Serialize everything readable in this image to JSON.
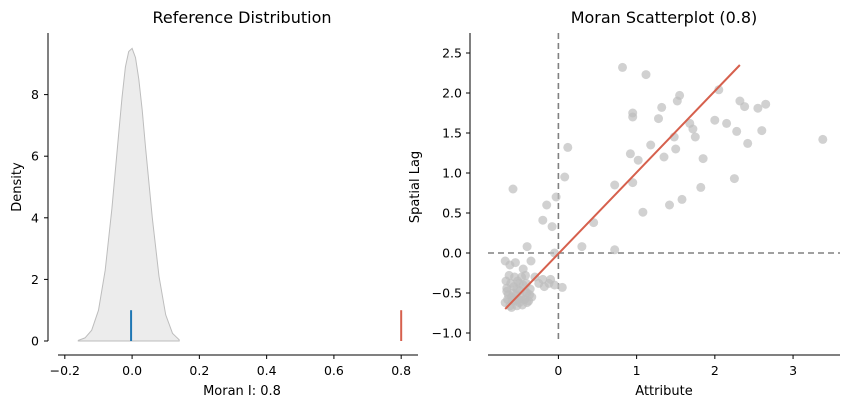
{
  "chart_data": [
    {
      "type": "area",
      "title": "Reference Distribution",
      "xlabel": "Moran I: 0.8",
      "ylabel": "Density",
      "xlim": [
        -0.25,
        0.85
      ],
      "ylim": [
        0,
        10
      ],
      "xticks": [
        -0.2,
        0.0,
        0.2,
        0.4,
        0.6,
        0.8
      ],
      "xtick_labels": [
        "−0.2",
        "0.0",
        "0.2",
        "0.4",
        "0.6",
        "0.8"
      ],
      "yticks": [
        0,
        2,
        4,
        6,
        8
      ],
      "ytick_labels": [
        "0",
        "2",
        "4",
        "6",
        "8"
      ],
      "density": {
        "x": [
          -0.16,
          -0.14,
          -0.12,
          -0.1,
          -0.08,
          -0.06,
          -0.04,
          -0.03,
          -0.02,
          -0.01,
          0.0,
          0.01,
          0.02,
          0.03,
          0.04,
          0.06,
          0.08,
          0.1,
          0.12,
          0.14
        ],
        "y": [
          0.02,
          0.1,
          0.35,
          1.0,
          2.3,
          4.3,
          6.7,
          7.9,
          8.9,
          9.4,
          9.5,
          9.2,
          8.5,
          7.5,
          6.3,
          4.0,
          2.1,
          0.85,
          0.25,
          0.04
        ],
        "fill": "#ececec",
        "stroke": "#bdbdbd"
      },
      "markers": [
        {
          "x": -0.003,
          "height": 1.0,
          "color": "#1f77b4"
        },
        {
          "x": 0.8,
          "height": 1.0,
          "color": "#d6604d"
        }
      ],
      "grid": false
    },
    {
      "type": "scatter",
      "title": "Moran Scatterplot (0.8)",
      "xlabel": "Attribute",
      "ylabel": "Spatial Lag",
      "xlim": [
        -0.9,
        3.6
      ],
      "ylim": [
        -1.1,
        2.75
      ],
      "xticks": [
        0,
        1,
        2,
        3
      ],
      "xtick_labels": [
        "0",
        "1",
        "2",
        "3"
      ],
      "yticks": [
        -1.0,
        -0.5,
        0.0,
        0.5,
        1.0,
        1.5,
        2.0,
        2.5
      ],
      "ytick_labels": [
        "−1.0",
        "−0.5",
        "0.0",
        "0.5",
        "1.0",
        "1.5",
        "2.0",
        "2.5"
      ],
      "point_color": "#bdbdbd",
      "points": [
        [
          -0.68,
          -0.62
        ],
        [
          -0.65,
          -0.58
        ],
        [
          -0.62,
          -0.66
        ],
        [
          -0.6,
          -0.55
        ],
        [
          -0.58,
          -0.5
        ],
        [
          -0.55,
          -0.6
        ],
        [
          -0.53,
          -0.45
        ],
        [
          -0.5,
          -0.62
        ],
        [
          -0.48,
          -0.55
        ],
        [
          -0.45,
          -0.4
        ],
        [
          -0.43,
          -0.58
        ],
        [
          -0.4,
          -0.5
        ],
        [
          -0.38,
          -0.6
        ],
        [
          -0.36,
          -0.45
        ],
        [
          -0.34,
          -0.55
        ],
        [
          -0.66,
          -0.48
        ],
        [
          -0.64,
          -0.52
        ],
        [
          -0.61,
          -0.38
        ],
        [
          -0.59,
          -0.6
        ],
        [
          -0.57,
          -0.42
        ],
        [
          -0.54,
          -0.52
        ],
        [
          -0.52,
          -0.35
        ],
        [
          -0.49,
          -0.47
        ],
        [
          -0.47,
          -0.3
        ],
        [
          -0.44,
          -0.58
        ],
        [
          -0.42,
          -0.48
        ],
        [
          -0.4,
          -0.62
        ],
        [
          -0.67,
          -0.35
        ],
        [
          -0.63,
          -0.28
        ],
        [
          -0.6,
          -0.68
        ],
        [
          -0.56,
          -0.3
        ],
        [
          -0.51,
          -0.58
        ],
        [
          -0.46,
          -0.65
        ],
        [
          -0.41,
          -0.38
        ],
        [
          -0.68,
          -0.1
        ],
        [
          -0.62,
          -0.15
        ],
        [
          -0.55,
          -0.12
        ],
        [
          -0.45,
          -0.2
        ],
        [
          -0.35,
          -0.1
        ],
        [
          -0.25,
          -0.38
        ],
        [
          -0.2,
          -0.33
        ],
        [
          -0.12,
          -0.38
        ],
        [
          -0.05,
          -0.4
        ],
        [
          0.05,
          -0.43
        ],
        [
          -0.3,
          -0.3
        ],
        [
          -0.18,
          -0.42
        ],
        [
          -0.1,
          -0.33
        ],
        [
          -0.58,
          0.8
        ],
        [
          -0.4,
          0.08
        ],
        [
          -0.05,
          0.0
        ],
        [
          -0.2,
          0.41
        ],
        [
          -0.15,
          0.6
        ],
        [
          -0.08,
          0.33
        ],
        [
          -0.03,
          0.7
        ],
        [
          0.08,
          0.95
        ],
        [
          0.12,
          1.32
        ],
        [
          0.3,
          0.08
        ],
        [
          0.45,
          0.38
        ],
        [
          0.72,
          0.04
        ],
        [
          0.72,
          0.85
        ],
        [
          0.82,
          2.32
        ],
        [
          0.92,
          1.24
        ],
        [
          0.95,
          1.75
        ],
        [
          0.95,
          1.7
        ],
        [
          0.95,
          0.88
        ],
        [
          1.02,
          1.16
        ],
        [
          1.08,
          0.51
        ],
        [
          1.12,
          2.23
        ],
        [
          1.18,
          1.35
        ],
        [
          1.28,
          1.68
        ],
        [
          1.32,
          1.82
        ],
        [
          1.35,
          1.2
        ],
        [
          1.42,
          0.6
        ],
        [
          1.48,
          1.45
        ],
        [
          1.5,
          1.3
        ],
        [
          1.52,
          1.9
        ],
        [
          1.55,
          1.97
        ],
        [
          1.58,
          0.67
        ],
        [
          1.68,
          1.62
        ],
        [
          1.72,
          1.55
        ],
        [
          1.75,
          1.45
        ],
        [
          1.82,
          0.82
        ],
        [
          1.85,
          1.18
        ],
        [
          2.0,
          1.66
        ],
        [
          2.05,
          2.04
        ],
        [
          2.15,
          1.62
        ],
        [
          2.25,
          0.93
        ],
        [
          2.28,
          1.52
        ],
        [
          2.32,
          1.9
        ],
        [
          2.38,
          1.83
        ],
        [
          2.42,
          1.37
        ],
        [
          2.55,
          1.81
        ],
        [
          2.6,
          1.53
        ],
        [
          2.65,
          1.86
        ],
        [
          3.38,
          1.42
        ],
        [
          -0.66,
          -0.44
        ],
        [
          -0.5,
          -0.38
        ],
        [
          -0.42,
          -0.28
        ],
        [
          -0.37,
          -0.52
        ],
        [
          -0.53,
          -0.66
        ]
      ],
      "fit_line": {
        "x": [
          -0.68,
          2.32
        ],
        "y": [
          -0.7,
          2.35
        ],
        "color": "#d6604d"
      },
      "reference_lines": {
        "x0": 0,
        "y0": 0,
        "color": "#808080",
        "style": "dashed"
      },
      "grid": false
    }
  ]
}
